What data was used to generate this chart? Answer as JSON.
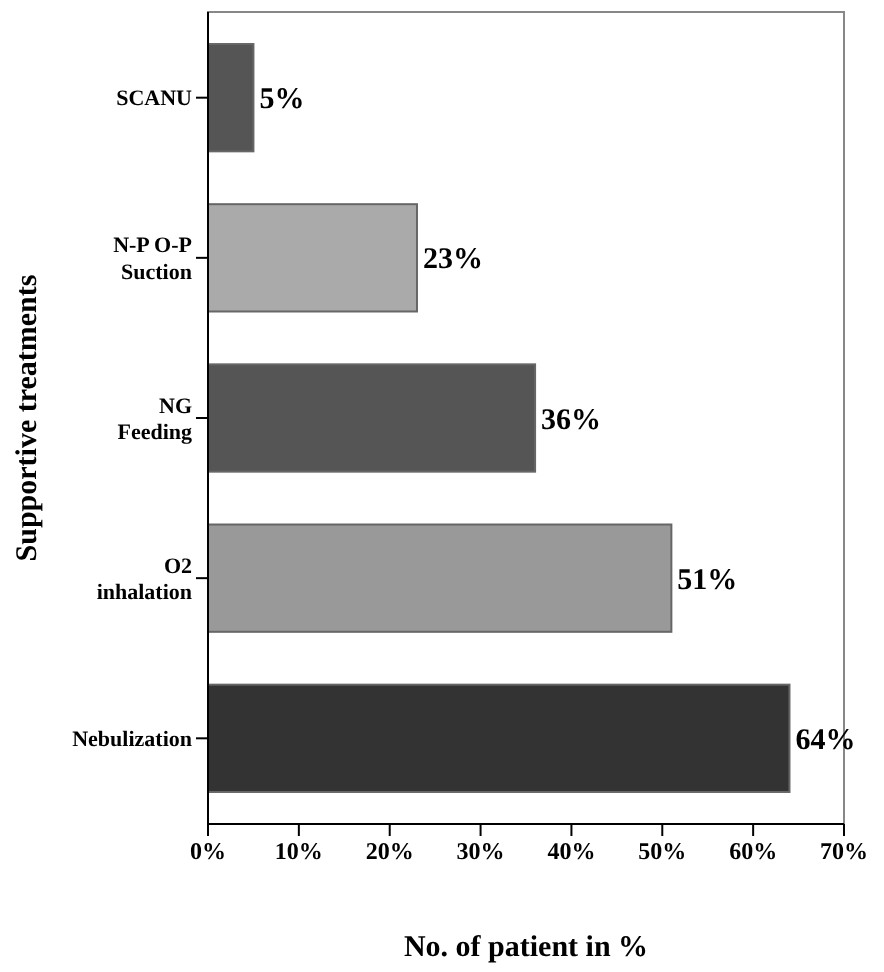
{
  "chart_data": {
    "type": "bar",
    "orientation": "horizontal",
    "xlabel": "No. of patient in %",
    "ylabel": "Supportive treatments",
    "categories": [
      "SCANU",
      "N-P O-P\nSuction",
      "NG\nFeeding",
      "O2\ninhalation",
      "Nebulization"
    ],
    "values": [
      5,
      23,
      36,
      51,
      64
    ],
    "colors": [
      "#555555",
      "#aaaaaa",
      "#555555",
      "#999999",
      "#333333"
    ],
    "value_labels": [
      "5%",
      "23%",
      "36%",
      "51%",
      "64%"
    ],
    "xlim": [
      0,
      70
    ],
    "xticks": [
      {
        "value": 0,
        "label": "0%"
      },
      {
        "value": 10,
        "label": "10%"
      },
      {
        "value": 20,
        "label": "20%"
      },
      {
        "value": 30,
        "label": "30%"
      },
      {
        "value": 40,
        "label": "40%"
      },
      {
        "value": 50,
        "label": "50%"
      },
      {
        "value": 60,
        "label": "60%"
      },
      {
        "value": 70,
        "label": "70%"
      }
    ],
    "grid": false
  }
}
